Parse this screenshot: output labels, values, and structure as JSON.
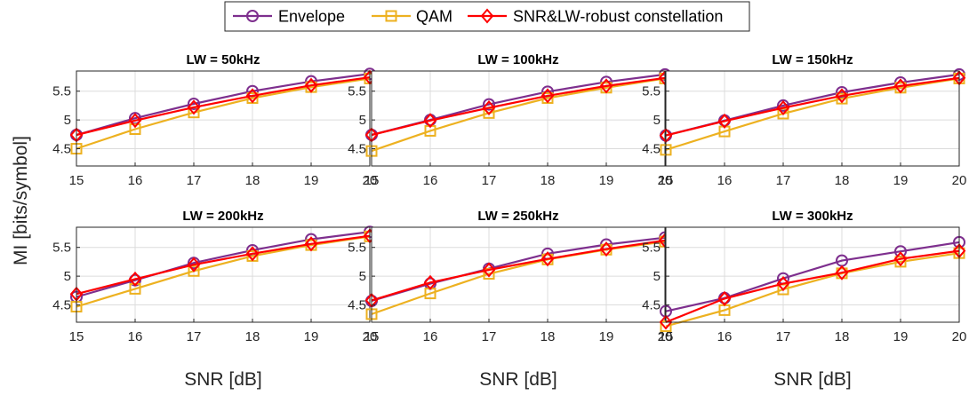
{
  "chart_data": {
    "type": "line",
    "layout": "2x3 subplots",
    "ylabel": "MI [bits/symbol]",
    "xlabel": "SNR [dB]",
    "x": [
      15,
      16,
      17,
      18,
      19,
      20
    ],
    "xticks": [
      "15",
      "16",
      "17",
      "18",
      "19",
      "20"
    ],
    "xlim": [
      15,
      20
    ],
    "yticks": [
      "4.5",
      "5",
      "5.5"
    ],
    "ytick_values": [
      4.5,
      5,
      5.5
    ],
    "ylim": [
      4.2,
      5.85
    ],
    "grid": true,
    "legend_position": "top-center",
    "legend": [
      {
        "name": "Envelope",
        "color": "#7E2F8E",
        "marker": "circle"
      },
      {
        "name": "QAM",
        "color": "#EDB120",
        "marker": "square"
      },
      {
        "name": "SNR&LW-robust constellation",
        "color": "#FF0000",
        "marker": "diamond"
      }
    ],
    "panels": [
      {
        "title": "LW = 50kHz",
        "series": [
          {
            "name": "Envelope",
            "values": [
              4.74,
              5.03,
              5.28,
              5.5,
              5.67,
              5.8
            ]
          },
          {
            "name": "QAM",
            "values": [
              4.5,
              4.84,
              5.13,
              5.38,
              5.57,
              5.72
            ]
          },
          {
            "name": "SNR&LW-robust constellation",
            "values": [
              4.74,
              4.99,
              5.22,
              5.42,
              5.6,
              5.74
            ]
          }
        ]
      },
      {
        "title": "LW = 100kHz",
        "series": [
          {
            "name": "Envelope",
            "values": [
              4.74,
              5.0,
              5.27,
              5.49,
              5.66,
              5.79
            ]
          },
          {
            "name": "QAM",
            "values": [
              4.46,
              4.81,
              5.12,
              5.38,
              5.56,
              5.72
            ]
          },
          {
            "name": "SNR&LW-robust constellation",
            "values": [
              4.74,
              4.99,
              5.21,
              5.42,
              5.59,
              5.73
            ]
          }
        ]
      },
      {
        "title": "LW = 150kHz",
        "series": [
          {
            "name": "Envelope",
            "values": [
              4.73,
              4.99,
              5.25,
              5.48,
              5.65,
              5.79
            ]
          },
          {
            "name": "QAM",
            "values": [
              4.48,
              4.8,
              5.11,
              5.37,
              5.56,
              5.72
            ]
          },
          {
            "name": "SNR&LW-robust constellation",
            "values": [
              4.73,
              4.98,
              5.21,
              5.42,
              5.59,
              5.73
            ]
          }
        ]
      },
      {
        "title": "LW = 200kHz",
        "series": [
          {
            "name": "Envelope",
            "values": [
              4.64,
              4.93,
              5.23,
              5.45,
              5.64,
              5.77
            ]
          },
          {
            "name": "QAM",
            "values": [
              4.47,
              4.78,
              5.09,
              5.35,
              5.54,
              5.69
            ]
          },
          {
            "name": "SNR&LW-robust constellation",
            "values": [
              4.69,
              4.95,
              5.2,
              5.39,
              5.56,
              5.7
            ]
          }
        ]
      },
      {
        "title": "LW = 250kHz",
        "series": [
          {
            "name": "Envelope",
            "values": [
              4.57,
              4.87,
              5.13,
              5.39,
              5.55,
              5.67
            ]
          },
          {
            "name": "QAM",
            "values": [
              4.34,
              4.7,
              5.04,
              5.29,
              5.46,
              5.6
            ]
          },
          {
            "name": "SNR&LW-robust constellation",
            "values": [
              4.58,
              4.89,
              5.11,
              5.3,
              5.47,
              5.62
            ]
          }
        ]
      },
      {
        "title": "LW = 300kHz",
        "series": [
          {
            "name": "Envelope",
            "values": [
              4.39,
              4.62,
              4.96,
              5.27,
              5.43,
              5.59
            ]
          },
          {
            "name": "QAM",
            "values": [
              4.13,
              4.41,
              4.77,
              5.05,
              5.25,
              5.4
            ]
          },
          {
            "name": "SNR&LW-robust constellation",
            "values": [
              4.2,
              4.61,
              4.87,
              5.06,
              5.3,
              5.44
            ]
          }
        ]
      }
    ]
  }
}
